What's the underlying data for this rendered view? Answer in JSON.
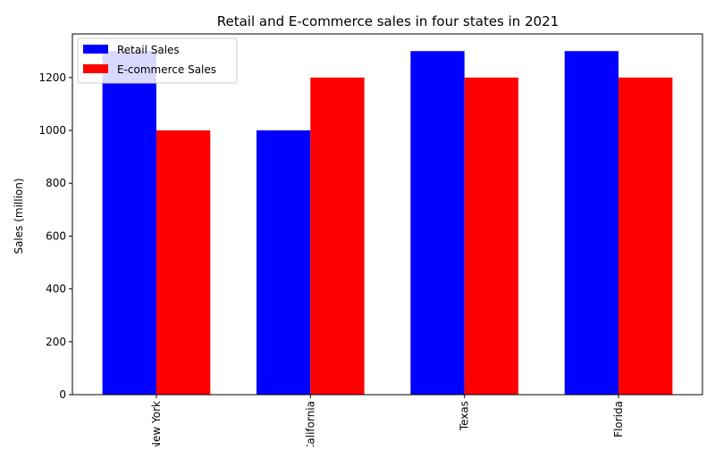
{
  "chart_data": {
    "type": "bar",
    "title": "Retail and E-commerce sales in four states in 2021",
    "xlabel": "",
    "ylabel": "Sales (million)",
    "categories": [
      "New York",
      "California",
      "Texas",
      "Florida"
    ],
    "series": [
      {
        "name": "Retail Sales",
        "values": [
          1300,
          1000,
          1300,
          1300
        ],
        "color": "#0000ff"
      },
      {
        "name": "E-commerce Sales",
        "values": [
          1000,
          1200,
          1200,
          1200
        ],
        "color": "#ff0000"
      }
    ],
    "ylim": [
      0,
      1365
    ],
    "yticks": [
      0,
      200,
      400,
      600,
      800,
      1000,
      1200
    ],
    "grid": false,
    "legend_position": "top-left",
    "xtick_rotation": "vertical"
  }
}
